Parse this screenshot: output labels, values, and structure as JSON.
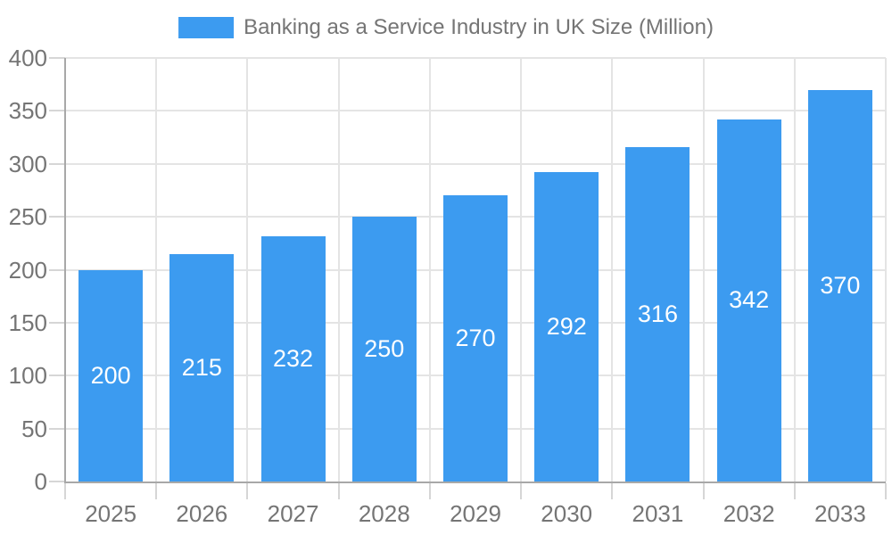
{
  "chart_data": {
    "type": "bar",
    "title": "Banking as a Service Industry in UK Size (Million)",
    "categories": [
      "2025",
      "2026",
      "2027",
      "2028",
      "2029",
      "2030",
      "2031",
      "2032",
      "2033"
    ],
    "values": [
      200,
      215,
      232,
      250,
      270,
      292,
      316,
      342,
      370
    ],
    "xlabel": "",
    "ylabel": "",
    "ylim": [
      0,
      400
    ],
    "y_ticks": [
      0,
      50,
      100,
      150,
      200,
      250,
      300,
      350,
      400
    ],
    "grid": true,
    "legend_position": "top",
    "value_labels": "inside-center",
    "colors": {
      "bar": "#3c9bf0",
      "axis_label_text": "#757575",
      "value_label_text": "#ffffff",
      "gridline": "#e4e4e4",
      "axis_line": "#a8a8a8",
      "tick": "#d6d6d6",
      "background": "#ffffff"
    }
  }
}
